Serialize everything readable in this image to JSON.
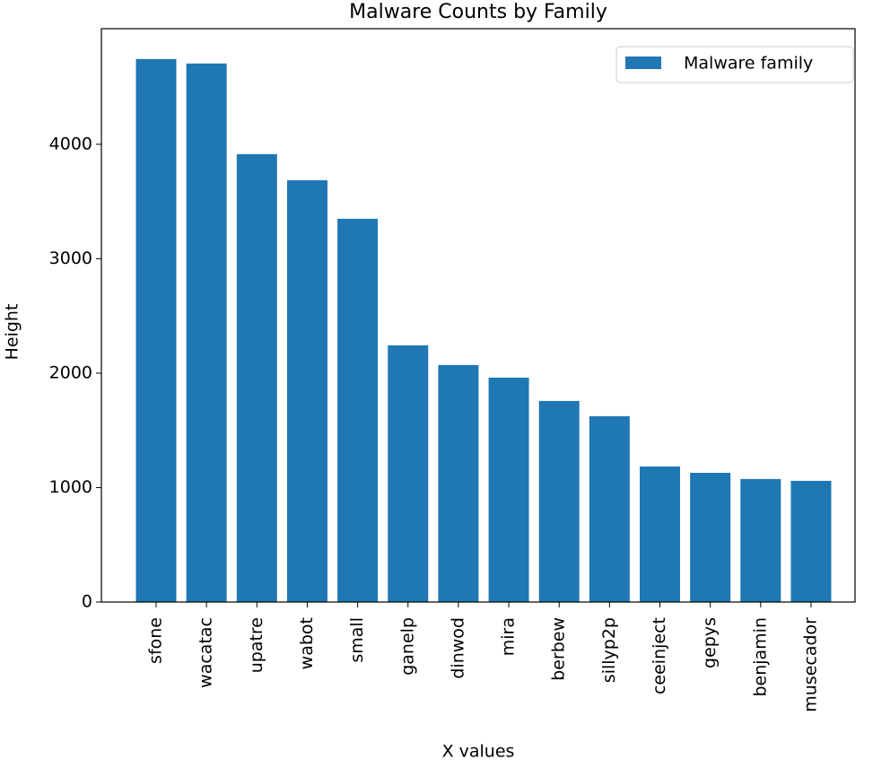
{
  "chart_data": {
    "type": "bar",
    "title": "Malware Counts by Family",
    "x_label": "X values",
    "y_label": "Height",
    "categories": [
      "sfone",
      "wacatac",
      "upatre",
      "wabot",
      "small",
      "ganelp",
      "dinwod",
      "mira",
      "berbew",
      "sillyp2p",
      "ceeinject",
      "gepys",
      "benjamin",
      "musecador"
    ],
    "series": [
      {
        "name": "Malware family",
        "color": "#1f77b4",
        "values": [
          4745,
          4706,
          3914,
          3686,
          3349,
          2243,
          2071,
          1961,
          1757,
          1624,
          1184,
          1129,
          1075,
          1059
        ]
      }
    ],
    "ylim": [
      0,
      5010
    ],
    "yticks": [
      0,
      1000,
      2000,
      3000,
      4000
    ],
    "legend": "upper right"
  }
}
